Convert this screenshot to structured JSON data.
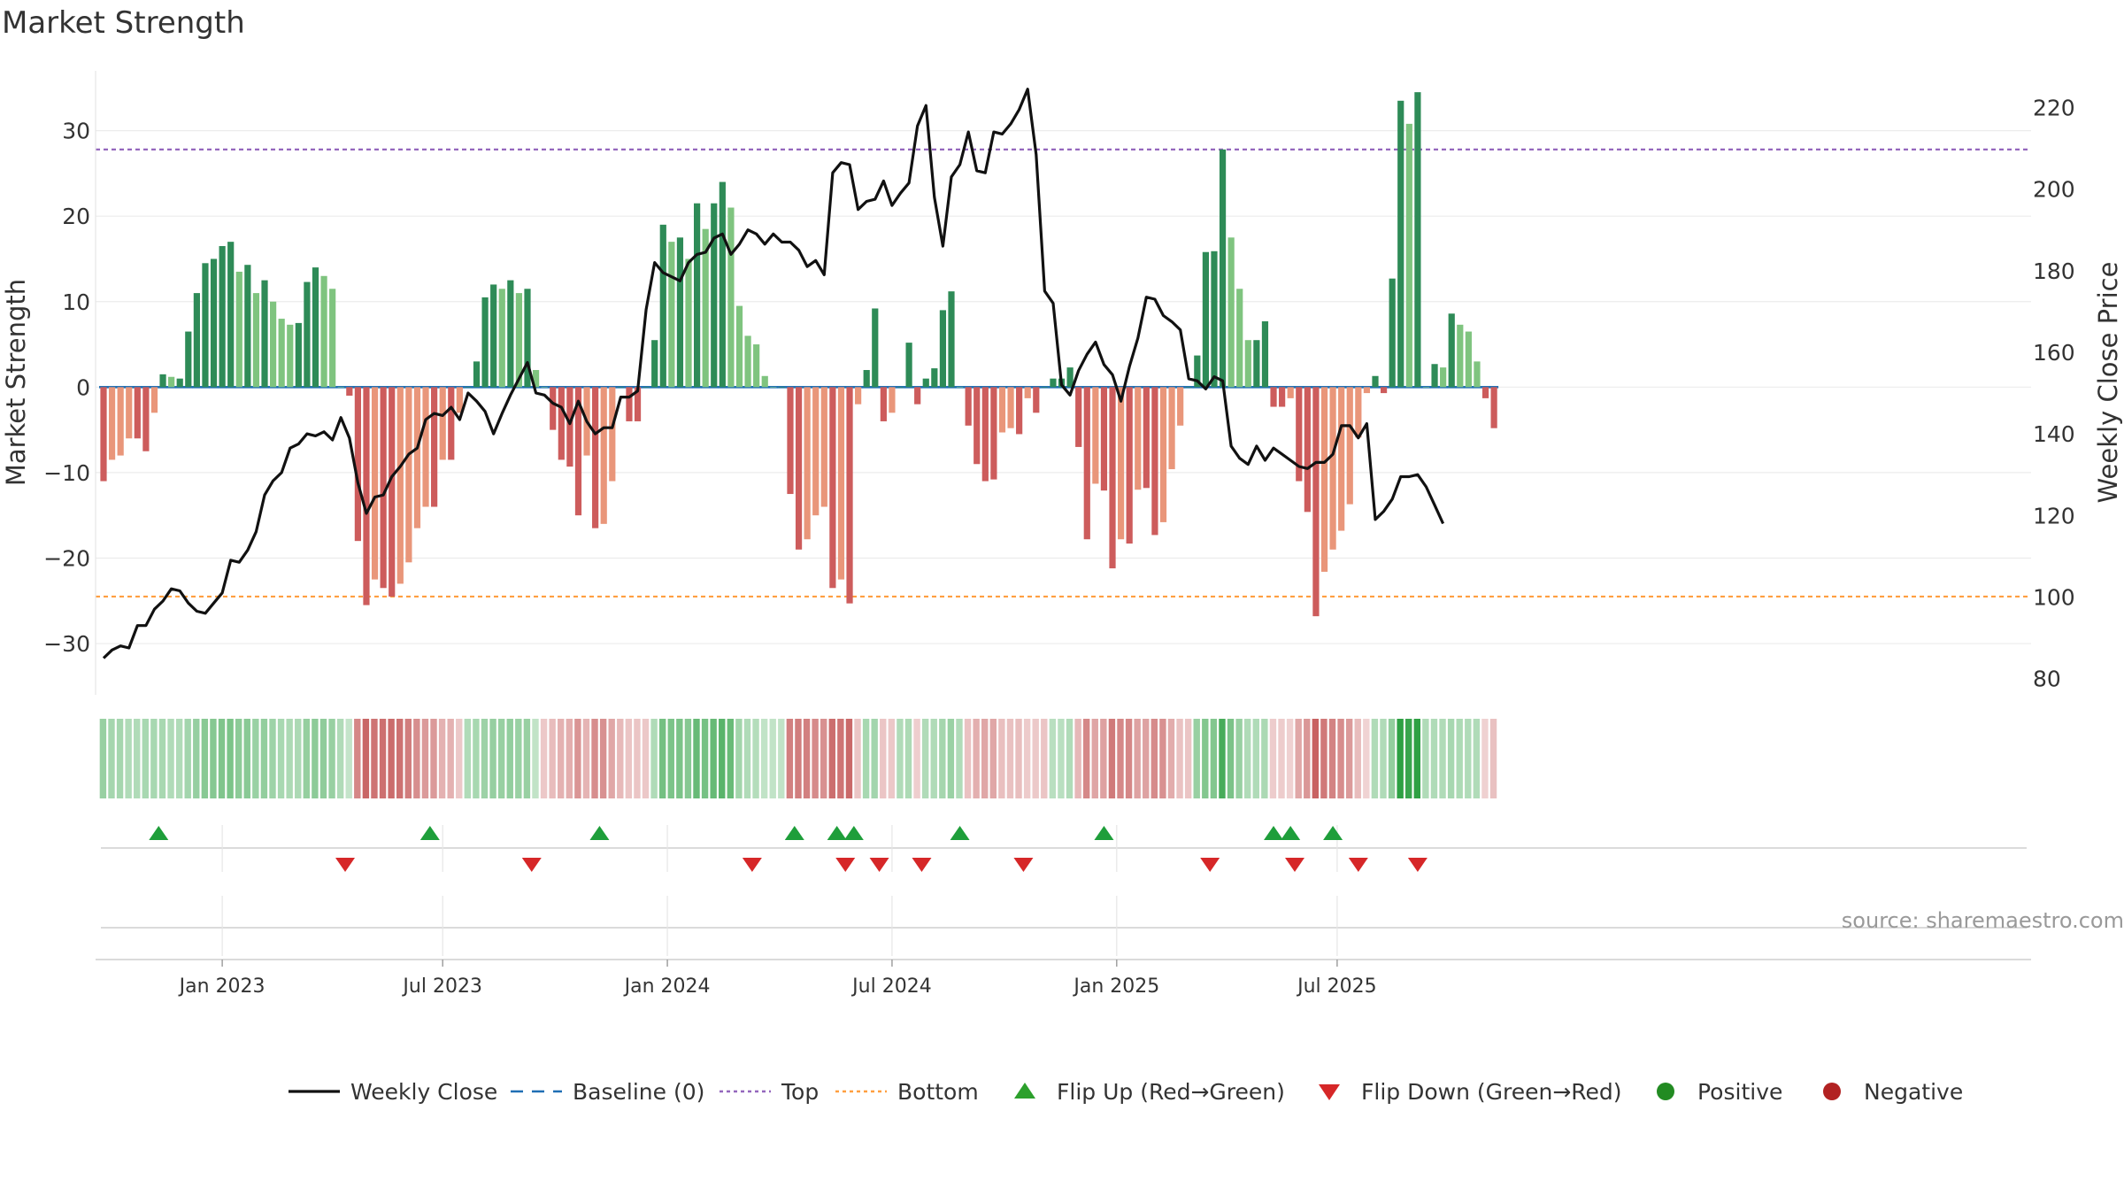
{
  "chart_data": {
    "type": "bar",
    "title": "Market Strength",
    "ylabel_left": "Market Strength",
    "ylabel_right": "Weekly Close Price",
    "ylim_left": [
      -36,
      37
    ],
    "ylim_right": [
      76,
      229
    ],
    "left_ticks": [
      "30",
      "20",
      "10",
      "0",
      "−10",
      "−20",
      "−30"
    ],
    "left_tick_values": [
      30,
      20,
      10,
      0,
      -10,
      -20,
      -30
    ],
    "right_ticks": [
      "220",
      "200",
      "180",
      "160",
      "140",
      "120",
      "100",
      "80"
    ],
    "right_tick_values": [
      220,
      200,
      180,
      160,
      140,
      120,
      100,
      80
    ],
    "x_tick_labels": [
      "Jan 2023",
      "Jul 2023",
      "Jan 2024",
      "Jul 2024",
      "Jan 2025",
      "Jul 2025"
    ],
    "x_tick_weeks": [
      14,
      40,
      66.5,
      93,
      119.5,
      145.5
    ],
    "top_level": 27.8,
    "bottom_level": -24.5,
    "strength": [
      -11,
      -8.5,
      -8,
      -6,
      -6,
      -7.5,
      -3,
      1.5,
      1.2,
      1,
      6.5,
      11,
      14.5,
      15,
      16.5,
      17,
      13.5,
      14.3,
      11,
      12.5,
      10,
      8,
      7.3,
      7.5,
      12.3,
      14,
      13,
      11.5,
      0,
      -1,
      -18,
      -25.5,
      -22.5,
      -23.5,
      -24.5,
      -23,
      -20.5,
      -16.5,
      -14,
      -14,
      -8.5,
      -8.5,
      -3,
      0,
      3,
      10.5,
      12,
      11.5,
      12.5,
      11,
      11.5,
      2,
      0,
      -5,
      -8.5,
      -9.3,
      -15,
      -8,
      -16.5,
      -16,
      -11,
      0,
      -4,
      -4,
      0,
      5.5,
      19,
      17,
      17.5,
      15,
      21.5,
      18.5,
      21.5,
      24,
      21,
      9.5,
      6,
      5,
      1.3,
      0,
      0,
      -12.5,
      -19,
      -17.8,
      -15,
      -14,
      -23.5,
      -22.5,
      -25.3,
      -2,
      2,
      9.2,
      -4,
      -3,
      0,
      5.2,
      -2,
      1,
      2.2,
      9,
      11.2,
      0,
      -4.5,
      -9,
      -11,
      -10.8,
      -5.3,
      -4.8,
      -5.5,
      -1.3,
      -3,
      0,
      1,
      1,
      2.3,
      -7,
      -17.8,
      -11.3,
      -12.1,
      -21.2,
      -17.8,
      -18.3,
      -12,
      -11.8,
      -17.3,
      -15.8,
      -9.6,
      -4.5,
      0,
      3.7,
      15.8,
      15.9,
      27.8,
      17.5,
      11.5,
      5.5,
      5.5,
      7.7,
      -2.3,
      -2.3,
      -1.3,
      -11,
      -14.6,
      -26.8,
      -21.6,
      -19,
      -16.8,
      -13.7,
      -5.9,
      -0.7,
      1.3,
      -0.7,
      12.7,
      33.5,
      30.8,
      34.5,
      0,
      2.7,
      2.3,
      8.6,
      7.3,
      6.5,
      3,
      -1.3,
      -4.8
    ],
    "weekly_close": [
      85,
      87,
      88,
      87.5,
      93,
      93,
      97,
      99,
      102,
      101.5,
      98.5,
      96.5,
      96,
      98.5,
      101,
      109,
      108.5,
      111.5,
      116,
      125,
      128.5,
      130.5,
      136.5,
      137.5,
      140,
      139.5,
      140.5,
      138.5,
      144,
      139,
      128,
      120.5,
      124.5,
      125,
      129.5,
      132,
      135,
      136.5,
      143.5,
      145,
      144.5,
      146.5,
      143.5,
      150,
      148,
      145.5,
      140,
      145,
      149.5,
      153.5,
      157.5,
      150,
      149.5,
      147.5,
      146.5,
      142.5,
      148,
      143,
      140,
      141.5,
      141.5,
      149,
      149,
      150.5,
      170.5,
      182,
      179.5,
      178.5,
      177.5,
      182,
      184,
      184.5,
      188,
      189,
      184,
      186.5,
      190,
      189,
      186.5,
      189,
      187,
      187,
      185,
      181,
      182.5,
      179,
      204,
      206.5,
      206,
      195,
      197,
      197.5,
      202,
      196,
      199,
      201.5,
      215.5,
      220.5,
      198,
      186,
      203,
      206,
      214,
      204.5,
      204,
      214,
      213.5,
      216,
      219.5,
      224.5,
      208.5,
      175,
      172,
      152,
      149.5,
      155.5,
      159.5,
      162.5,
      157,
      154.5,
      148,
      156.5,
      163.5,
      173.5,
      173,
      169,
      167.5,
      165.5,
      153.5,
      153,
      151,
      154,
      153,
      137,
      134,
      132.5,
      137,
      133.5,
      136.5,
      135,
      133.5,
      132,
      131.5,
      133,
      133,
      135,
      142,
      142,
      139,
      142.5,
      119,
      121,
      124,
      129.5,
      129.5,
      130,
      127,
      122.5,
      118
    ],
    "flip_up_weeks": [
      6.5,
      38.5,
      58.5,
      81.5,
      86.5,
      88.5,
      101,
      118,
      138,
      140,
      145
    ],
    "flip_down_weeks": [
      28.5,
      50.5,
      76.5,
      87.5,
      91.5,
      96.5,
      108.5,
      130.5,
      140.5,
      148,
      155
    ],
    "heat_index": [
      0.35,
      0.27,
      0.27,
      0.2,
      0.2,
      0.25,
      0.25,
      0.25,
      0.2,
      0.2,
      0.28,
      0.36,
      0.45,
      0.46,
      0.5,
      0.52,
      0.42,
      0.44,
      0.34,
      0.38,
      0.31,
      0.25,
      0.23,
      0.23,
      0.37,
      0.42,
      0.4,
      0.35,
      0.2,
      0.08,
      -0.55,
      -0.78,
      -0.68,
      -0.71,
      -0.74,
      -0.7,
      -0.62,
      -0.5,
      -0.42,
      -0.42,
      -0.26,
      -0.26,
      -0.1,
      0.2,
      0.25,
      0.32,
      0.36,
      0.35,
      0.38,
      0.34,
      0.35,
      0.1,
      -0.1,
      -0.18,
      -0.26,
      -0.28,
      -0.45,
      -0.24,
      -0.5,
      -0.48,
      -0.33,
      -0.2,
      -0.12,
      -0.12,
      -0.1,
      0.2,
      0.57,
      0.52,
      0.53,
      0.46,
      0.65,
      0.56,
      0.65,
      0.73,
      0.64,
      0.29,
      0.2,
      0.18,
      0.1,
      0.1,
      0.1,
      -0.6,
      -0.62,
      -0.6,
      -0.52,
      -0.48,
      -0.72,
      -0.68,
      -0.76,
      -0.12,
      0.25,
      0.28,
      -0.12,
      -0.1,
      0.2,
      0.22,
      -0.06,
      0.2,
      0.2,
      0.27,
      0.34,
      0.2,
      -0.14,
      -0.27,
      -0.33,
      -0.33,
      -0.16,
      -0.15,
      -0.17,
      -0.08,
      -0.09,
      -0.12,
      0.15,
      0.15,
      0.2,
      -0.21,
      -0.54,
      -0.34,
      -0.37,
      -0.64,
      -0.54,
      -0.55,
      -0.36,
      -0.36,
      -0.52,
      -0.48,
      -0.29,
      -0.14,
      -0.12,
      0.35,
      0.48,
      0.48,
      0.84,
      0.53,
      0.35,
      0.2,
      0.2,
      0.23,
      -0.07,
      -0.07,
      -0.04,
      -0.33,
      -0.44,
      -0.81,
      -0.65,
      -0.58,
      -0.51,
      -0.42,
      -0.18,
      -0.02,
      0.2,
      0.2,
      0.38,
      1,
      0.93,
      1,
      0.2,
      0.2,
      0.2,
      0.26,
      0.22,
      0.2,
      0.2,
      -0.04,
      -0.15
    ],
    "source_text": "source: sharemaestro.com",
    "legend": [
      {
        "label": "Weekly Close",
        "kind": "line",
        "color": "#111111"
      },
      {
        "label": "Baseline (0)",
        "kind": "dash",
        "color": "#1f6fb4"
      },
      {
        "label": "Top",
        "kind": "dot",
        "color": "#9467bd"
      },
      {
        "label": "Bottom",
        "kind": "dot",
        "color": "#ff9f40"
      },
      {
        "label": "Flip Up (Red→Green)",
        "kind": "tri-up",
        "color": "#2ca02c"
      },
      {
        "label": "Flip Down (Green→Red)",
        "kind": "tri-down",
        "color": "#d62728"
      },
      {
        "label": "Positive",
        "kind": "circle",
        "color": "#228b22"
      },
      {
        "label": "Negative",
        "kind": "circle",
        "color": "#b22222"
      }
    ],
    "colors": {
      "pos_strong": "#2e8b57",
      "pos_light": "#7fc47f",
      "neg_strong": "#cd5c5c",
      "neg_light": "#e9967a",
      "baseline": "#1f6fb4",
      "top": "#9467bd",
      "bottom": "#ff9f40",
      "close": "#111111"
    }
  }
}
